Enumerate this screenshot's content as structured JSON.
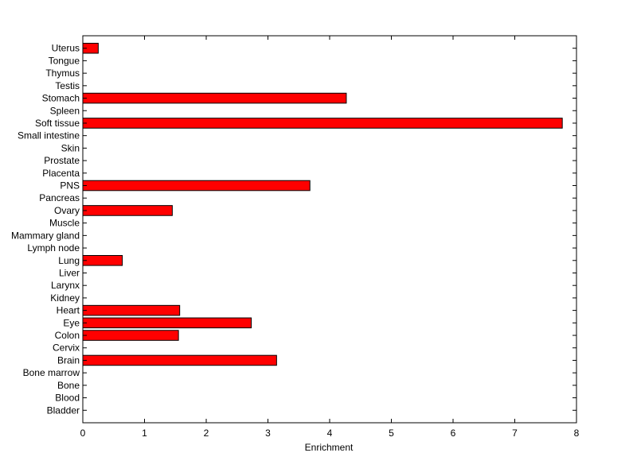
{
  "chart_data": {
    "type": "bar",
    "orientation": "horizontal",
    "xlabel": "Enrichment",
    "ylabel": "",
    "title": "",
    "xlim": [
      0,
      8
    ],
    "xticks": [
      0,
      1,
      2,
      3,
      4,
      5,
      6,
      7,
      8
    ],
    "grid": false,
    "bar_color": "#ff0000",
    "bar_edge_color": "#000000",
    "categories": [
      "Bladder",
      "Blood",
      "Bone",
      "Bone marrow",
      "Brain",
      "Cervix",
      "Colon",
      "Eye",
      "Heart",
      "Kidney",
      "Larynx",
      "Liver",
      "Lung",
      "Lymph node",
      "Mammary gland",
      "Muscle",
      "Ovary",
      "Pancreas",
      "PNS",
      "Placenta",
      "Prostate",
      "Skin",
      "Small intestine",
      "Soft tissue",
      "Spleen",
      "Stomach",
      "Testis",
      "Thymus",
      "Tongue",
      "Uterus"
    ],
    "values": [
      0,
      0,
      0,
      0,
      3.14,
      0,
      1.55,
      2.73,
      1.57,
      0,
      0,
      0,
      0.64,
      0,
      0,
      0,
      1.45,
      0,
      3.68,
      0,
      0,
      0,
      0,
      7.77,
      0,
      4.27,
      0,
      0,
      0,
      0.25
    ]
  }
}
